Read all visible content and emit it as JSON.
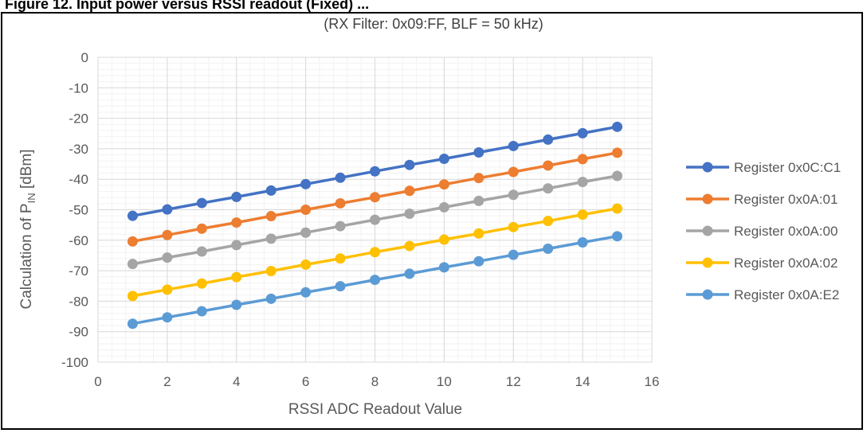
{
  "page": {
    "top_caption": "Figure 12. Input power versus RSSI readout (Fixed) ..."
  },
  "chart_data": {
    "type": "line",
    "subtitle": "(RX Filter: 0x09:FF, BLF = 50 kHz)",
    "xlabel": "RSSI ADC Readout Value",
    "ylabel_main": "Calculation of P",
    "ylabel_sub": "IN",
    "ylabel_tail": " [dBm]",
    "xlim": [
      0,
      16
    ],
    "ylim": [
      -100,
      0
    ],
    "xticks": [
      0,
      2,
      4,
      6,
      8,
      10,
      12,
      14,
      16
    ],
    "yticks": [
      0,
      -10,
      -20,
      -30,
      -40,
      -50,
      -60,
      -70,
      -80,
      -90,
      -100
    ],
    "grid": true,
    "legend_position": "right",
    "x": [
      1,
      2,
      3,
      4,
      5,
      6,
      7,
      8,
      9,
      10,
      11,
      12,
      13,
      14,
      15
    ],
    "series": [
      {
        "name": "Register 0x0C:C1",
        "color": "#4472C4",
        "values": [
          -52,
          -49.9,
          -47.8,
          -45.8,
          -43.7,
          -41.6,
          -39.5,
          -37.4,
          -35.3,
          -33.3,
          -31.2,
          -29.1,
          -27,
          -24.9,
          -22.8
        ]
      },
      {
        "name": "Register 0x0A:01",
        "color": "#ED7D31",
        "values": [
          -60.4,
          -58.3,
          -56.2,
          -54.2,
          -52.1,
          -50,
          -47.9,
          -45.9,
          -43.8,
          -41.7,
          -39.6,
          -37.6,
          -35.5,
          -33.4,
          -31.3
        ]
      },
      {
        "name": "Register 0x0A:00",
        "color": "#A5A5A5",
        "values": [
          -67.8,
          -65.7,
          -63.7,
          -61.6,
          -59.5,
          -57.5,
          -55.4,
          -53.3,
          -51.3,
          -49.2,
          -47.1,
          -45.1,
          -43,
          -40.9,
          -38.9
        ]
      },
      {
        "name": "Register 0x0A:02",
        "color": "#FFC000",
        "values": [
          -78.3,
          -76.2,
          -74.2,
          -72.1,
          -70.1,
          -68,
          -66,
          -63.9,
          -61.9,
          -59.8,
          -57.8,
          -55.7,
          -53.7,
          -51.6,
          -49.6
        ]
      },
      {
        "name": "Register 0x0A:E2",
        "color": "#5B9BD5",
        "values": [
          -87.4,
          -85.3,
          -83.3,
          -81.2,
          -79.2,
          -77.1,
          -75.1,
          -73,
          -71,
          -68.9,
          -66.9,
          -64.8,
          -62.8,
          -60.7,
          -58.7
        ]
      }
    ]
  }
}
